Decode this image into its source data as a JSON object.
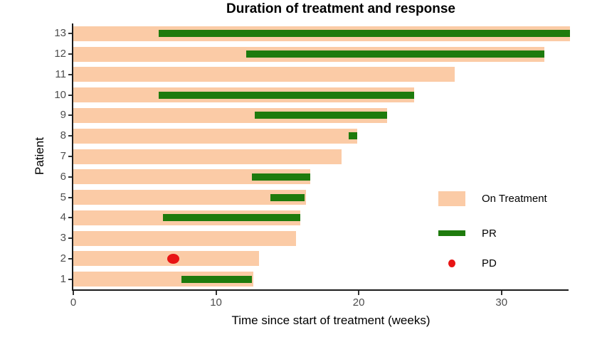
{
  "chart_data": {
    "type": "bar",
    "subtype": "swimmer-plot",
    "title": "Duration of treatment and response",
    "xlabel": "Time since start of treatment (weeks)",
    "ylabel": "Patient",
    "xlim": [
      0,
      35
    ],
    "xticks": [
      0,
      10,
      20,
      30
    ],
    "grid": false,
    "legend_position": "right",
    "colors": {
      "on_treatment": "#FBCBA6",
      "pr": "#1E7B0D",
      "pd": "#E81414",
      "axis": "#1A1A1A",
      "tick_text": "#4D4D4D"
    },
    "legend": [
      {
        "label": "On Treatment",
        "swatch": "fill"
      },
      {
        "label": "PR",
        "swatch": "line"
      },
      {
        "label": "PD",
        "swatch": "dot"
      }
    ],
    "patients": [
      {
        "id": "13",
        "on_treatment": [
          0,
          34.8
        ],
        "pr": [
          6.0,
          34.8
        ],
        "pd": null
      },
      {
        "id": "12",
        "on_treatment": [
          0,
          33.0
        ],
        "pr": [
          12.1,
          33.0
        ],
        "pd": null
      },
      {
        "id": "11",
        "on_treatment": [
          0,
          26.7
        ],
        "pr": null,
        "pd": null
      },
      {
        "id": "10",
        "on_treatment": [
          0,
          23.9
        ],
        "pr": [
          6.0,
          23.9
        ],
        "pd": null
      },
      {
        "id": "9",
        "on_treatment": [
          0,
          22.0
        ],
        "pr": [
          12.7,
          22.0
        ],
        "pd": null
      },
      {
        "id": "8",
        "on_treatment": [
          0,
          19.9
        ],
        "pr": [
          19.3,
          19.9
        ],
        "pd": null
      },
      {
        "id": "7",
        "on_treatment": [
          0,
          18.8
        ],
        "pr": null,
        "pd": null
      },
      {
        "id": "6",
        "on_treatment": [
          0,
          16.6
        ],
        "pr": [
          12.5,
          16.6
        ],
        "pd": null
      },
      {
        "id": "5",
        "on_treatment": [
          0,
          16.3
        ],
        "pr": [
          13.8,
          16.2
        ],
        "pd": null
      },
      {
        "id": "4",
        "on_treatment": [
          0,
          15.9
        ],
        "pr": [
          6.3,
          15.9
        ],
        "pd": null
      },
      {
        "id": "3",
        "on_treatment": [
          0,
          15.6
        ],
        "pr": null,
        "pd": null
      },
      {
        "id": "2",
        "on_treatment": [
          0,
          13.0
        ],
        "pr": null,
        "pd": 7.0
      },
      {
        "id": "1",
        "on_treatment": [
          0,
          12.6
        ],
        "pr": [
          7.6,
          12.5
        ],
        "pd": null
      }
    ]
  }
}
